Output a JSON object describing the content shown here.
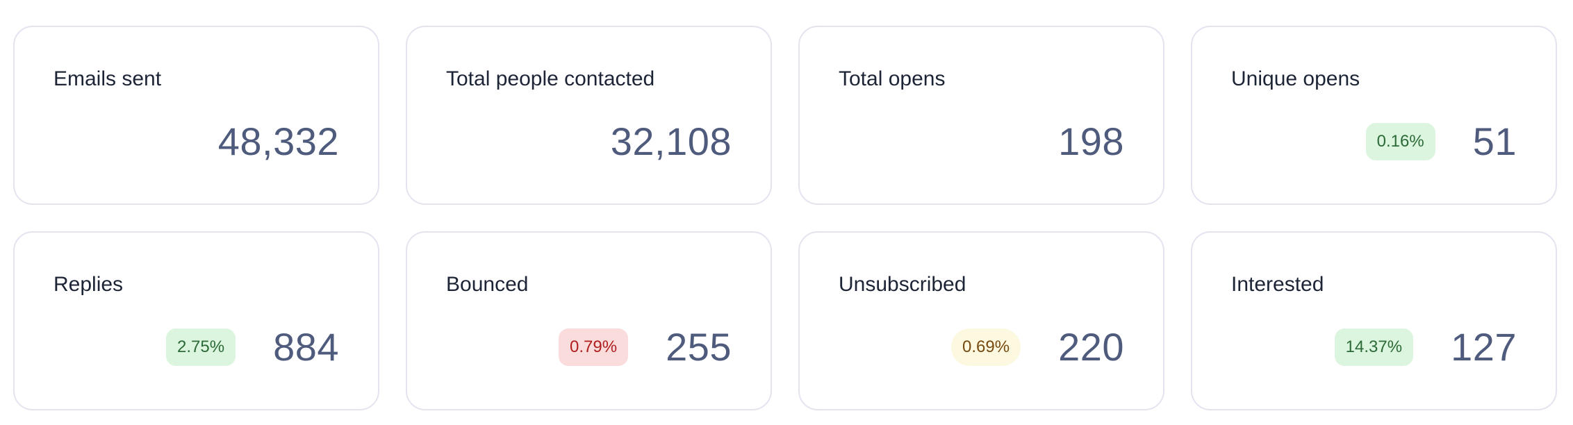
{
  "stats": [
    {
      "label": "Emails sent",
      "value": "48,332"
    },
    {
      "label": "Total people contacted",
      "value": "32,108"
    },
    {
      "label": "Total opens",
      "value": "198"
    },
    {
      "label": "Unique opens",
      "value": "51",
      "badge": "0.16%",
      "badge_tone": "green"
    },
    {
      "label": "Replies",
      "value": "884",
      "badge": "2.75%",
      "badge_tone": "green"
    },
    {
      "label": "Bounced",
      "value": "255",
      "badge": "0.79%",
      "badge_tone": "red"
    },
    {
      "label": "Unsubscribed",
      "value": "220",
      "badge": "0.69%",
      "badge_tone": "yellow"
    },
    {
      "label": "Interested",
      "value": "127",
      "badge": "14.37%",
      "badge_tone": "green"
    }
  ],
  "colors": {
    "green_bg": "#dcf5df",
    "red_bg": "#fadcdc",
    "yellow_bg": "#fdf9e0",
    "value_text": "#4f5b7c"
  }
}
